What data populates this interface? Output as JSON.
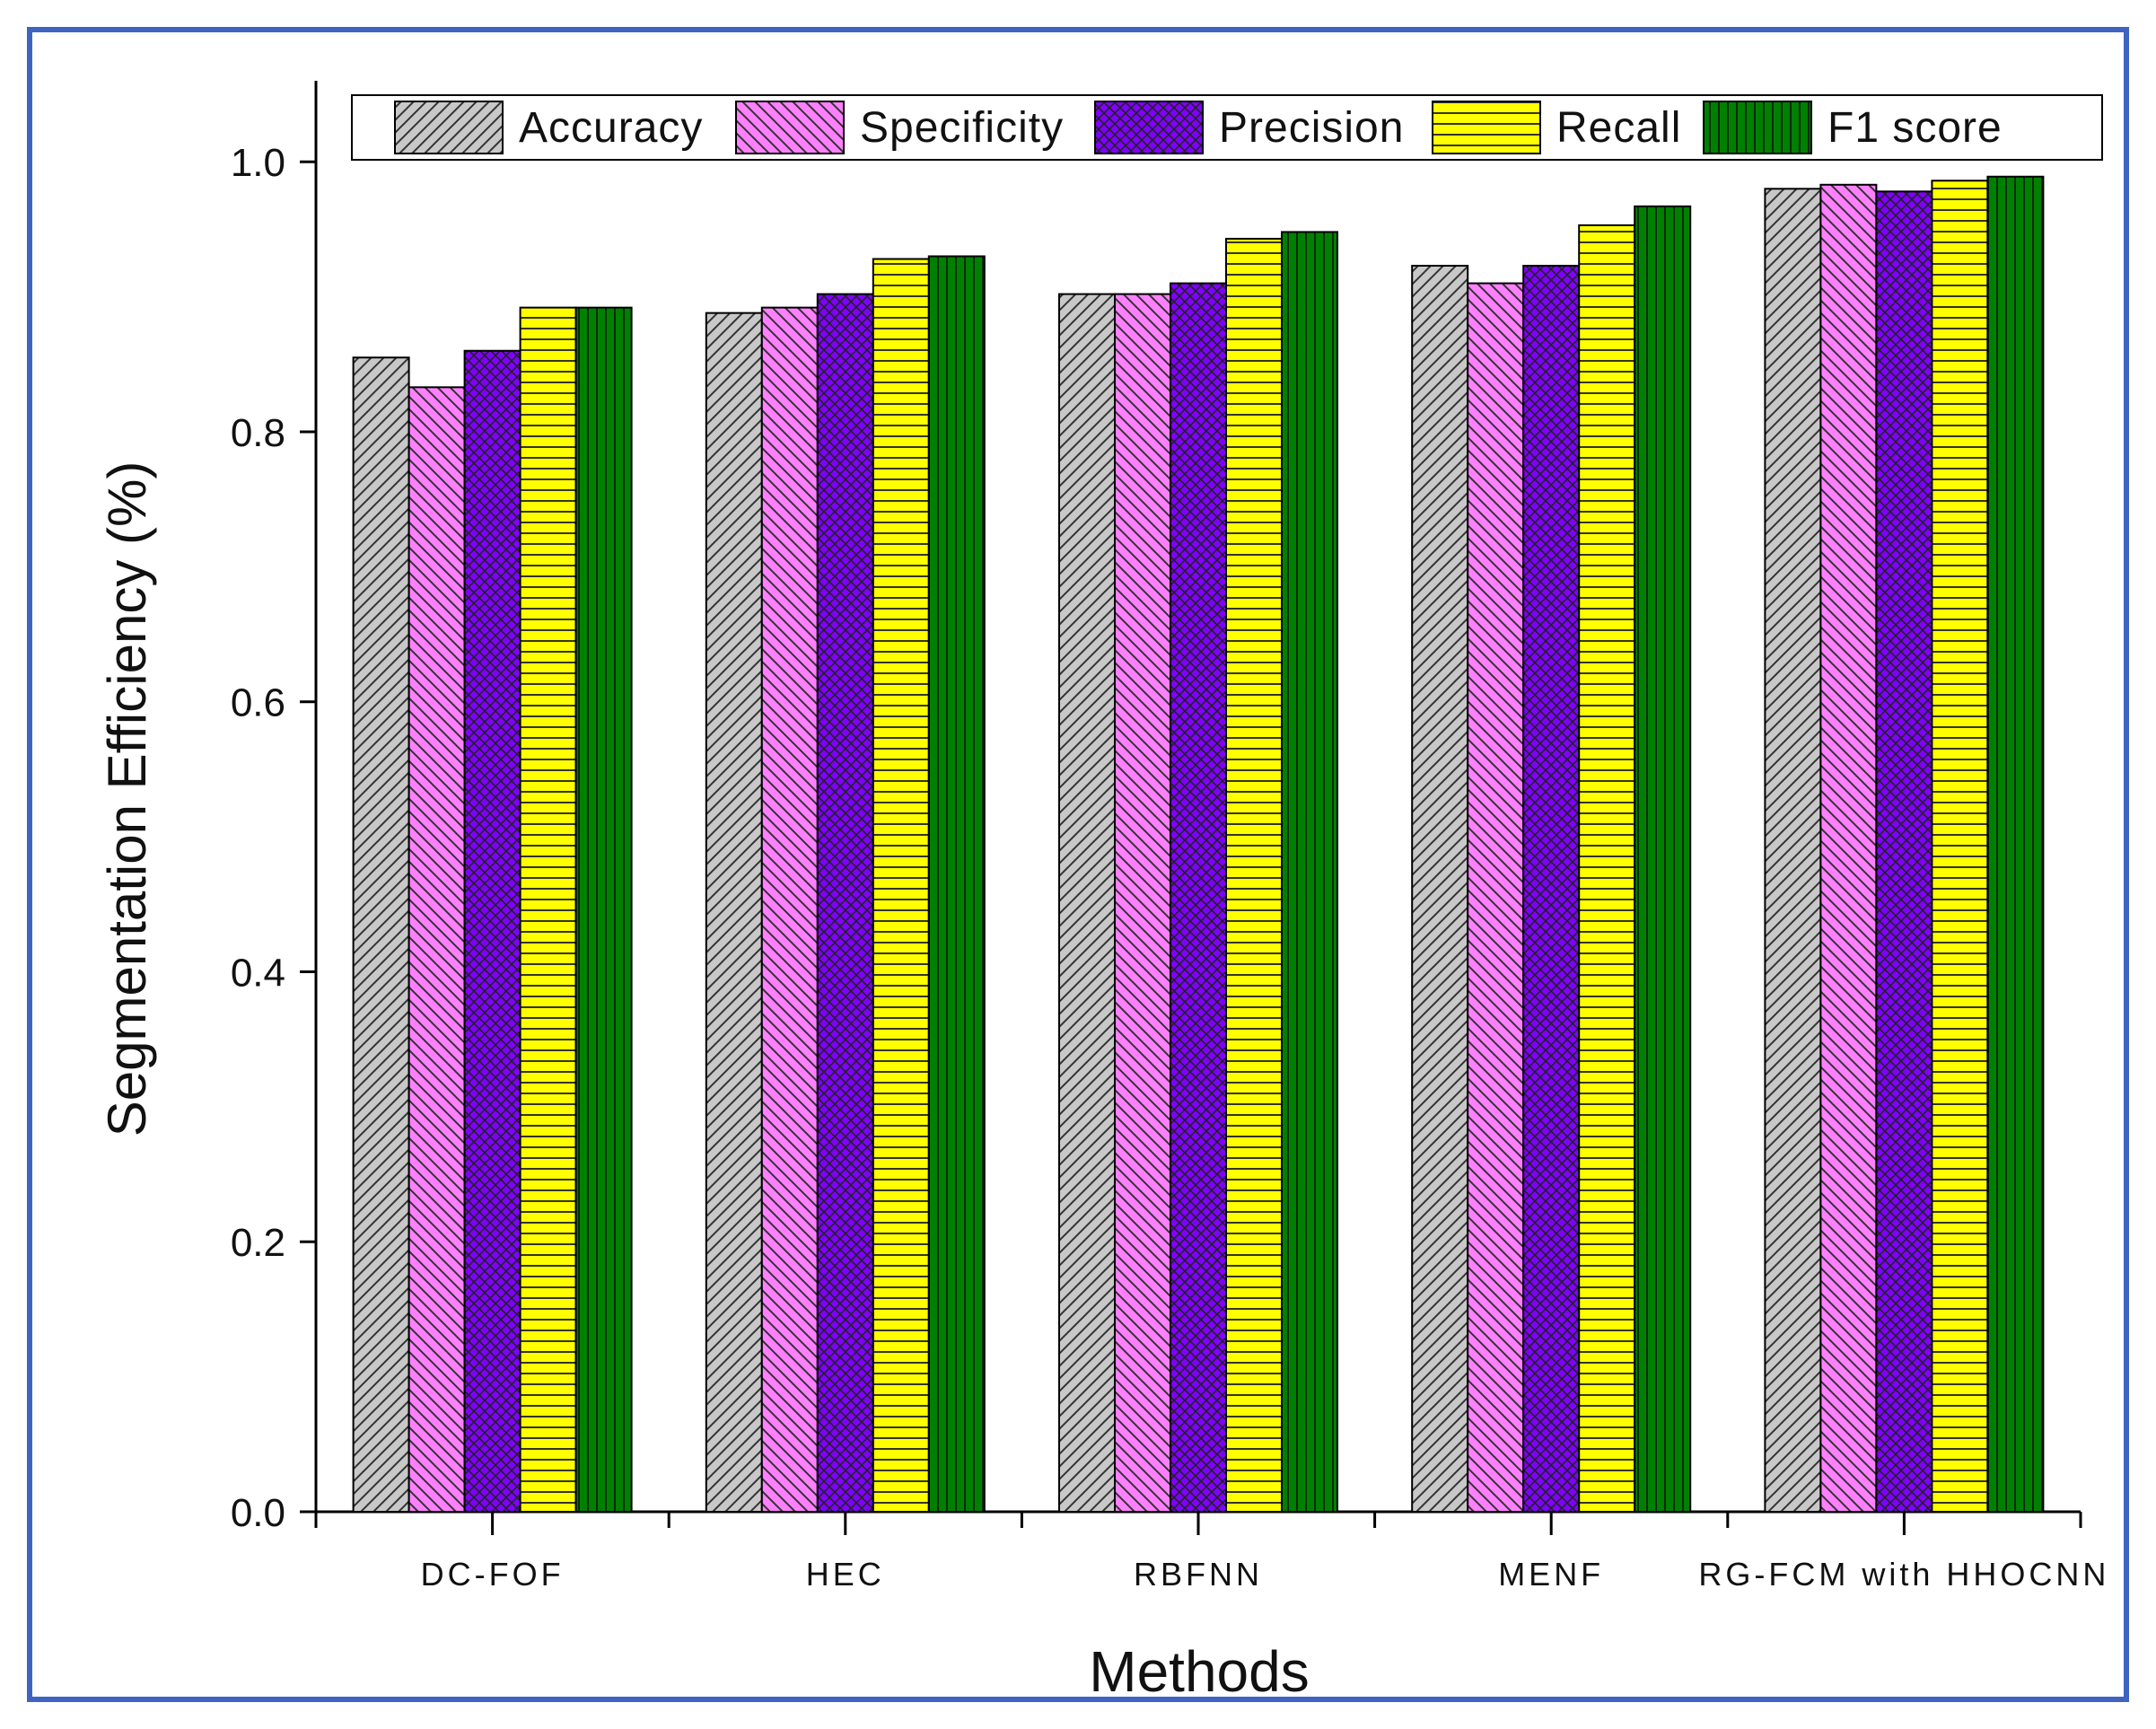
{
  "chart_data": {
    "type": "bar",
    "title": "",
    "xlabel": "Methods",
    "ylabel": "Segmentation Efficiency (%)",
    "ylim": [
      0,
      1.06
    ],
    "yticks": [
      0.0,
      0.2,
      0.4,
      0.6,
      0.8,
      1.0
    ],
    "ytick_labels": [
      "0.0",
      "0.2",
      "0.4",
      "0.6",
      "0.8",
      "1.0"
    ],
    "categories": [
      "DC-FOF",
      "HEC",
      "RBFNN",
      "MENF",
      "RG-FCM with HHOCNN"
    ],
    "legend_position": "top",
    "series": [
      {
        "name": "Accuracy",
        "color": "#c8c8c8",
        "pattern": "diagonal-hatch",
        "values": [
          0.855,
          0.888,
          0.902,
          0.923,
          0.98
        ]
      },
      {
        "name": "Specificity",
        "color": "#ff80ff",
        "pattern": "back-diagonal-hatch",
        "values": [
          0.833,
          0.892,
          0.902,
          0.91,
          0.983
        ]
      },
      {
        "name": "Precision",
        "color": "#8000ff",
        "pattern": "crosshatch",
        "values": [
          0.86,
          0.902,
          0.91,
          0.923,
          0.978
        ]
      },
      {
        "name": "Recall",
        "color": "#ffff00",
        "pattern": "horizontal-lines",
        "values": [
          0.892,
          0.928,
          0.943,
          0.953,
          0.986
        ]
      },
      {
        "name": "F1 score",
        "color": "#008000",
        "pattern": "vertical-lines",
        "values": [
          0.892,
          0.93,
          0.948,
          0.967,
          0.989
        ]
      }
    ]
  }
}
